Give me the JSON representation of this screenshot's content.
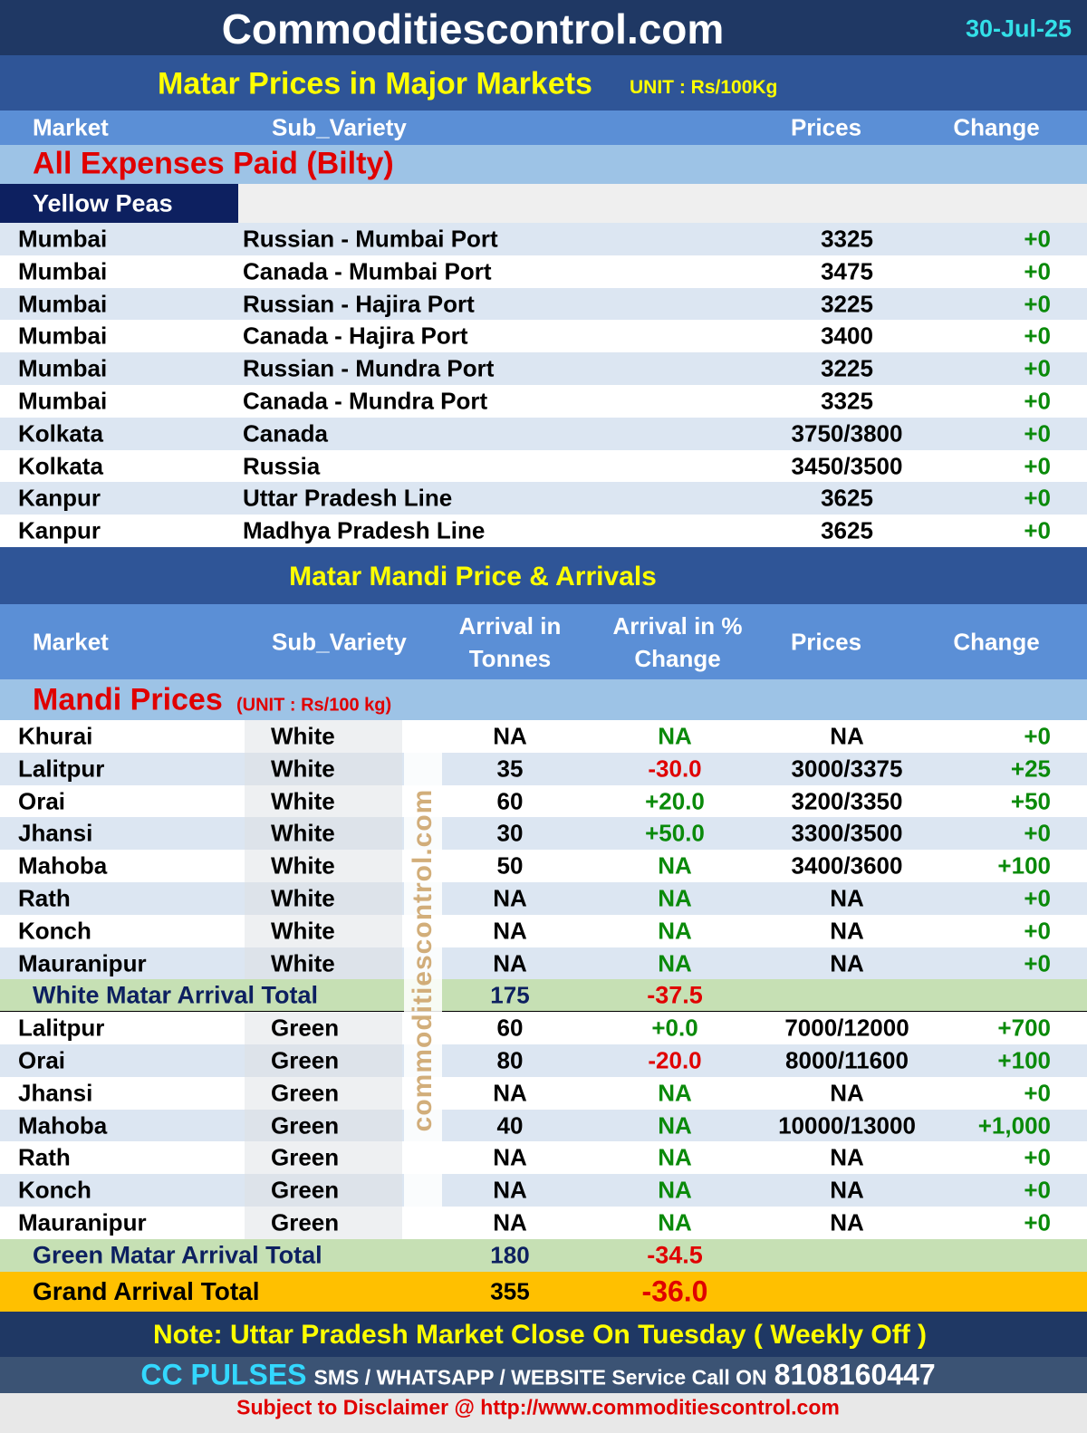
{
  "header": {
    "title": "Commoditiescontrol.com",
    "date": "30-Jul-25"
  },
  "section1": {
    "title": "Matar Prices in Major Markets",
    "unit": "UNIT : Rs/100Kg",
    "columns": [
      "Market",
      "Sub_Variety",
      "Prices",
      "Change"
    ],
    "group": "All Expenses Paid (Bilty)",
    "subgroup": "Yellow Peas",
    "rows": [
      [
        "Mumbai",
        "Russian - Mumbai Port",
        "3325",
        "+0"
      ],
      [
        "Mumbai",
        "Canada - Mumbai Port",
        "3475",
        "+0"
      ],
      [
        "Mumbai",
        "Russian - Hajira Port",
        "3225",
        "+0"
      ],
      [
        "Mumbai",
        "Canada - Hajira Port",
        "3400",
        "+0"
      ],
      [
        "Mumbai",
        "Russian - Mundra Port",
        "3225",
        "+0"
      ],
      [
        "Mumbai",
        "Canada - Mundra Port",
        "3325",
        "+0"
      ],
      [
        "Kolkata",
        "Canada",
        "3750/3800",
        "+0"
      ],
      [
        "Kolkata",
        "Russia",
        "3450/3500",
        "+0"
      ],
      [
        "Kanpur",
        "Uttar Pradesh Line",
        "3625",
        "+0"
      ],
      [
        "Kanpur",
        "Madhya Pradesh Line",
        "3625",
        "+0"
      ]
    ]
  },
  "section2": {
    "title": "Matar Mandi Price & Arrivals",
    "columns": [
      "Market",
      "Sub_Variety",
      "Arrival in Tonnes",
      "Arrival in % Change",
      "Prices",
      "Change"
    ],
    "group": "Mandi Prices",
    "unit": "(UNIT : Rs/100 kg)",
    "white_rows": [
      [
        "Khurai",
        "White",
        "NA",
        "NA",
        "NA",
        "+0"
      ],
      [
        "Lalitpur",
        "White",
        "35",
        "-30.0",
        "3000/3375",
        "+25"
      ],
      [
        "Orai",
        "White",
        "60",
        "+20.0",
        "3200/3350",
        "+50"
      ],
      [
        "Jhansi",
        "White",
        "30",
        "+50.0",
        "3300/3500",
        "+0"
      ],
      [
        "Mahoba",
        "White",
        "50",
        "NA",
        "3400/3600",
        "+100"
      ],
      [
        "Rath",
        "White",
        "NA",
        "NA",
        "NA",
        "+0"
      ],
      [
        "Konch",
        "White",
        "NA",
        "NA",
        "NA",
        "+0"
      ],
      [
        "Mauranipur",
        "White",
        "NA",
        "NA",
        "NA",
        "+0"
      ]
    ],
    "white_total": [
      "White Matar Arrival Total",
      "175",
      "-37.5"
    ],
    "green_rows": [
      [
        "Lalitpur",
        "Green",
        "60",
        "+0.0",
        "7000/12000",
        "+700"
      ],
      [
        "Orai",
        "Green",
        "80",
        "-20.0",
        "8000/11600",
        "+100"
      ],
      [
        "Jhansi",
        "Green",
        "NA",
        "NA",
        "NA",
        "+0"
      ],
      [
        "Mahoba",
        "Green",
        "40",
        "NA",
        "10000/13000",
        "+1,000"
      ],
      [
        "Rath",
        "Green",
        "NA",
        "NA",
        "NA",
        "+0"
      ],
      [
        "Konch",
        "Green",
        "NA",
        "NA",
        "NA",
        "+0"
      ],
      [
        "Mauranipur",
        "Green",
        "NA",
        "NA",
        "NA",
        "+0"
      ]
    ],
    "green_total": [
      "Green Matar Arrival Total",
      "180",
      "-34.5"
    ],
    "grand_total": [
      "Grand Arrival Total",
      "355",
      "-36.0"
    ],
    "watermark": "commoditiescontrol.com"
  },
  "footer": {
    "note": "Note: Uttar Pradesh Market Close On Tuesday ( Weekly Off )",
    "brand": "CC PULSES",
    "service": "SMS / WHATSAPP / WEBSITE Service Call  ON",
    "phone": "8108160447",
    "disclaimer": "Subject to Disclaimer @  http://www.commoditiescontrol.com"
  }
}
